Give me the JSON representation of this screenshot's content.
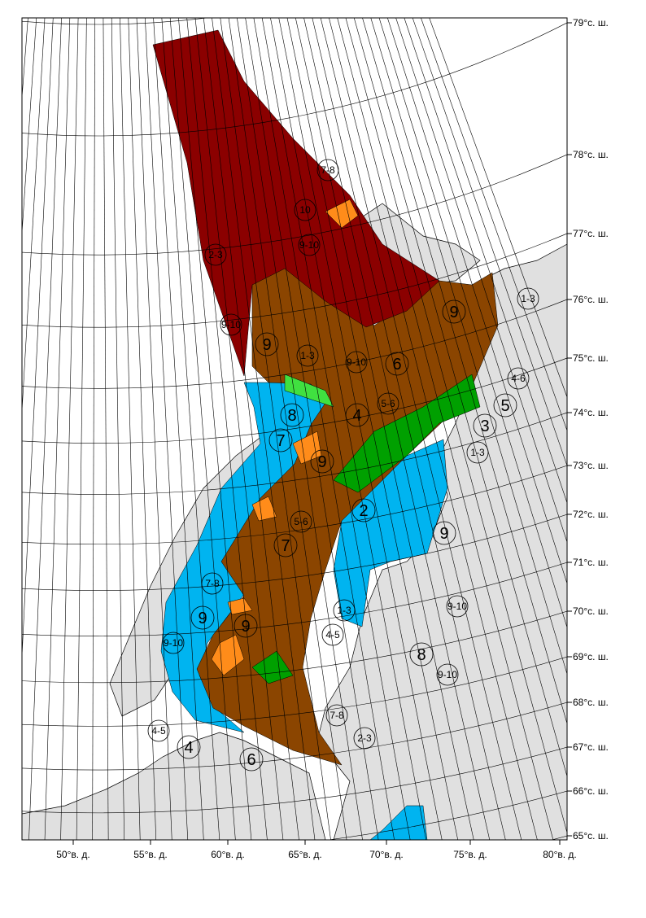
{
  "map": {
    "lat_labels": [
      "79°с. ш.",
      "78°с. ш.",
      "77°с. ш.",
      "76°с. ш.",
      "75°с. ш.",
      "74°с. ш.",
      "73°с. ш.",
      "72°с. ш.",
      "71°с. ш.",
      "70°с. ш.",
      "69°с. ш.",
      "68°с. ш.",
      "67°с. ш.",
      "66°с. ш.",
      "65°с. ш."
    ],
    "lon_labels": [
      "50°в. д.",
      "55°в. д.",
      "60°в. д.",
      "65°в. д.",
      "70°в. д.",
      "75°в. д.",
      "80°в. д."
    ],
    "ice_labels": [
      "7-8",
      "10",
      "9-10",
      "2-3",
      "9-10",
      "9",
      "1-3",
      "9-10",
      "6",
      "9",
      "1-3",
      "4-6",
      "5",
      "3",
      "5-6",
      "4",
      "8",
      "7",
      "1-3",
      "9",
      "2",
      "5-6",
      "9",
      "7",
      "7-8",
      "1-3",
      "9-10",
      "9",
      "9",
      "4-5",
      "9-10",
      "8",
      "9-10",
      "7-8",
      "4-5",
      "2-3",
      "4",
      "6"
    ]
  }
}
